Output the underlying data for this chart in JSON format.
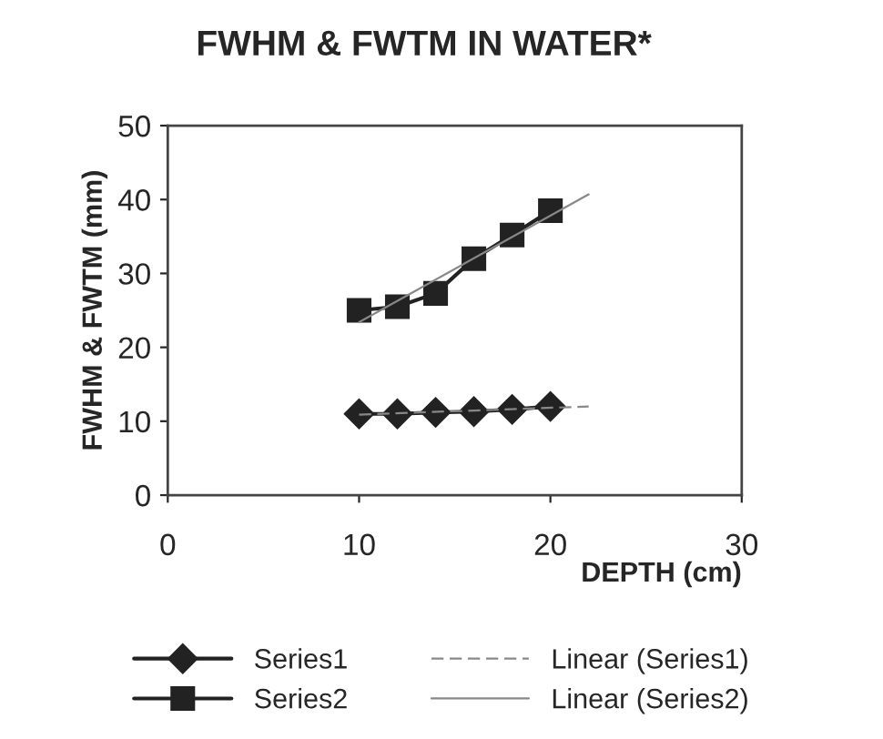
{
  "chart_data": {
    "type": "line",
    "title": "FWHM & FWTM IN WATER*",
    "xlabel": "DEPTH (cm)",
    "ylabel": "FWHM & FWTM (mm)",
    "xlim": [
      0,
      30
    ],
    "xticks": [
      0,
      10,
      20,
      30
    ],
    "ylim": [
      0,
      50
    ],
    "yticks": [
      0,
      10,
      20,
      30,
      40,
      50
    ],
    "grid": false,
    "legend": "bottom",
    "series": [
      {
        "name": "Series1",
        "color": "#222222",
        "x": [
          10,
          12,
          14,
          16,
          18,
          20
        ],
        "values": [
          11,
          11,
          11.2,
          11.3,
          11.6,
          12
        ],
        "marker": "diamond",
        "line_style": "solid"
      },
      {
        "name": "Series2",
        "color": "#222222",
        "x": [
          10,
          12,
          14,
          16,
          18,
          20
        ],
        "values": [
          25,
          25.5,
          27.3,
          32,
          35.2,
          38.5
        ],
        "marker": "square",
        "line_style": "solid"
      },
      {
        "name": "Linear (Series1)",
        "color": "#888888",
        "x": [
          10,
          22
        ],
        "values": [
          10.9,
          12.0
        ],
        "marker": "none",
        "line_style": "dashed"
      },
      {
        "name": "Linear (Series2)",
        "color": "#888888",
        "x": [
          10,
          22
        ],
        "values": [
          23.4,
          40.7
        ],
        "marker": "none",
        "line_style": "solid"
      }
    ]
  }
}
